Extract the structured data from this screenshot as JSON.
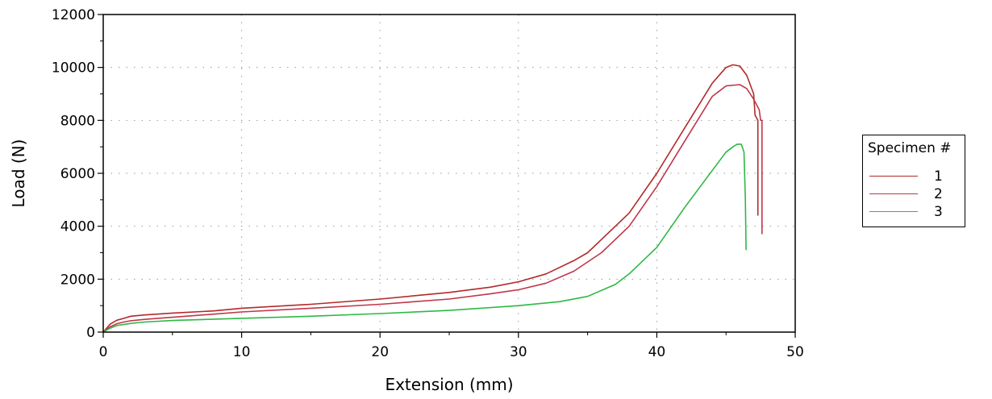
{
  "chart_data": {
    "type": "line",
    "xlabel": "Extension (mm)",
    "ylabel": "Load (N)",
    "xlim": [
      0,
      50
    ],
    "ylim": [
      0,
      12000
    ],
    "xticks": [
      "0",
      "10",
      "20",
      "30",
      "40",
      "50"
    ],
    "yticks": [
      "0",
      "2000",
      "4000",
      "6000",
      "8000",
      "10000",
      "12000"
    ],
    "grid": true,
    "legend": {
      "title": "Specimen #",
      "placement": "right"
    },
    "series": [
      {
        "name": "1",
        "color": "#b22a2a",
        "x": [
          0,
          0.5,
          1,
          1.5,
          2,
          3,
          5,
          8,
          10,
          15,
          20,
          25,
          28,
          30,
          32,
          34,
          35,
          36,
          38,
          40,
          42,
          44,
          45,
          45.5,
          46,
          46.5,
          47,
          47.1,
          47.3,
          47.3
        ],
        "y": [
          0,
          300,
          450,
          520,
          600,
          650,
          720,
          800,
          900,
          1050,
          1250,
          1500,
          1700,
          1900,
          2200,
          2700,
          3000,
          3500,
          4500,
          6000,
          7700,
          9400,
          10000,
          10100,
          10050,
          9700,
          9000,
          8200,
          8000,
          4400
        ]
      },
      {
        "name": "2",
        "color": "#c0364a",
        "x": [
          0,
          0.5,
          1,
          1.5,
          2,
          3,
          5,
          8,
          10,
          15,
          20,
          25,
          28,
          30,
          32,
          34,
          36,
          38,
          40,
          42,
          44,
          45,
          46,
          46.5,
          47,
          47.4,
          47.5,
          47.6,
          47.6
        ],
        "y": [
          0,
          200,
          320,
          380,
          430,
          480,
          560,
          680,
          760,
          900,
          1050,
          1250,
          1450,
          1600,
          1850,
          2300,
          3000,
          4000,
          5500,
          7200,
          8900,
          9300,
          9350,
          9200,
          8800,
          8400,
          8000,
          8000,
          3700
        ]
      },
      {
        "name": "3",
        "color": "#2eb845",
        "x": [
          0,
          0.5,
          1,
          2,
          3,
          5,
          10,
          15,
          20,
          25,
          30,
          33,
          35,
          37,
          38,
          40,
          42,
          44,
          45,
          45.5,
          45.8,
          46.1,
          46.3,
          46.4,
          46.45
        ],
        "y": [
          0,
          150,
          250,
          330,
          380,
          440,
          520,
          600,
          700,
          820,
          1000,
          1150,
          1350,
          1800,
          2200,
          3200,
          4700,
          6100,
          6800,
          7000,
          7100,
          7100,
          6800,
          5000,
          3100
        ]
      }
    ]
  }
}
